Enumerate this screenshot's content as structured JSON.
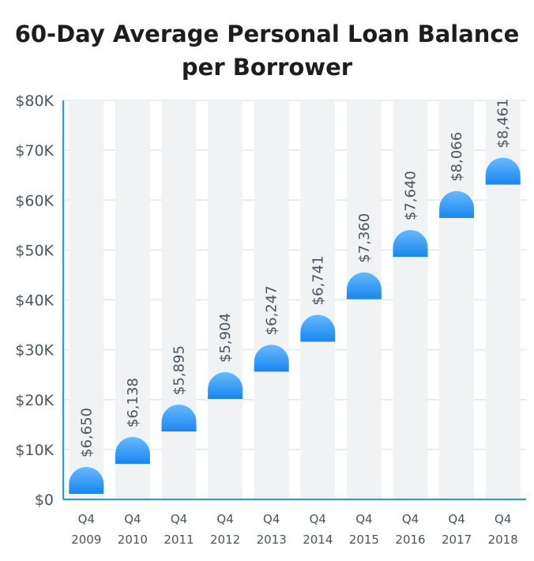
{
  "chart_data": {
    "type": "bar",
    "title_line1": "60-Day Average Personal Loan Balance",
    "title_line2": "per Borrower",
    "categories": [
      [
        "Q4",
        "2009"
      ],
      [
        "Q4",
        "2010"
      ],
      [
        "Q4",
        "2011"
      ],
      [
        "Q4",
        "2012"
      ],
      [
        "Q4",
        "2013"
      ],
      [
        "Q4",
        "2014"
      ],
      [
        "Q4",
        "2015"
      ],
      [
        "Q4",
        "2016"
      ],
      [
        "Q4",
        "2017"
      ],
      [
        "Q4",
        "2018"
      ]
    ],
    "bar_top_values": [
      6500,
      12500,
      19000,
      25500,
      31000,
      37000,
      45500,
      54000,
      61800,
      68500
    ],
    "data_labels": [
      "$6,650",
      "$6,138",
      "$5,895",
      "$5,904",
      "$6,247",
      "$6,741",
      "$7,360",
      "$7,640",
      "$8,066",
      "$8,461"
    ],
    "yticks": [
      0,
      10000,
      20000,
      30000,
      40000,
      50000,
      60000,
      70000,
      80000
    ],
    "ytick_labels": [
      "$0",
      "$10K",
      "$20K",
      "$30K",
      "$40K",
      "$50K",
      "$60K",
      "$70K",
      "$80K"
    ],
    "ylim": [
      0,
      80000
    ],
    "grid": true,
    "legend": "none",
    "colors": {
      "cap_top": "#6ab8f7",
      "cap_bottom": "#1787f2",
      "bar_body": "#f0f2f3",
      "grid": "#dde7f0",
      "axis": "#2196f3",
      "text": "#4a5560",
      "title": "#1d1d1d"
    }
  }
}
